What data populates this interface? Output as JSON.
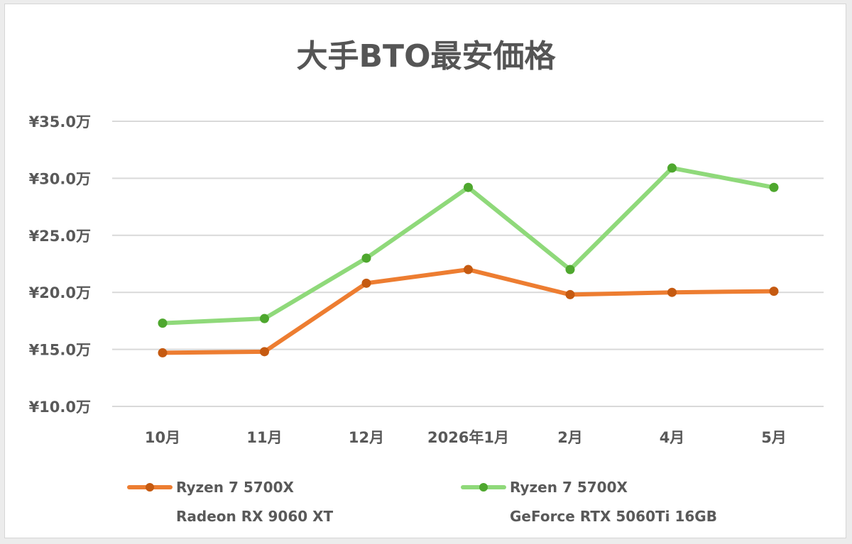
{
  "chart_data": {
    "type": "line",
    "title": "大手BTO最安価格",
    "categories": [
      "10月",
      "11月",
      "12月",
      "2026年1月",
      "2月",
      "4月",
      "5月"
    ],
    "y_ticks": [
      "¥10.0万",
      "¥15.0万",
      "¥20.0万",
      "¥25.0万",
      "¥30.0万",
      "¥35.0万"
    ],
    "ylim": [
      10,
      35
    ],
    "y_unit": "万円",
    "grid": true,
    "legend_position": "bottom",
    "series": [
      {
        "name_line1": "Ryzen 7 5700X",
        "name_line2": "Radeon RX 9060 XT",
        "color": "#ed7d31",
        "marker_color": "#c55a11",
        "values": [
          14.7,
          14.8,
          20.8,
          22.0,
          19.8,
          20.0,
          20.1
        ]
      },
      {
        "name_line1": "Ryzen 7 5700X",
        "name_line2": "GeForce RTX 5060Ti 16GB",
        "color": "#8fd97a",
        "marker_color": "#4ea72e",
        "values": [
          17.3,
          17.7,
          23.0,
          29.2,
          22.0,
          30.9,
          29.2
        ]
      }
    ]
  }
}
